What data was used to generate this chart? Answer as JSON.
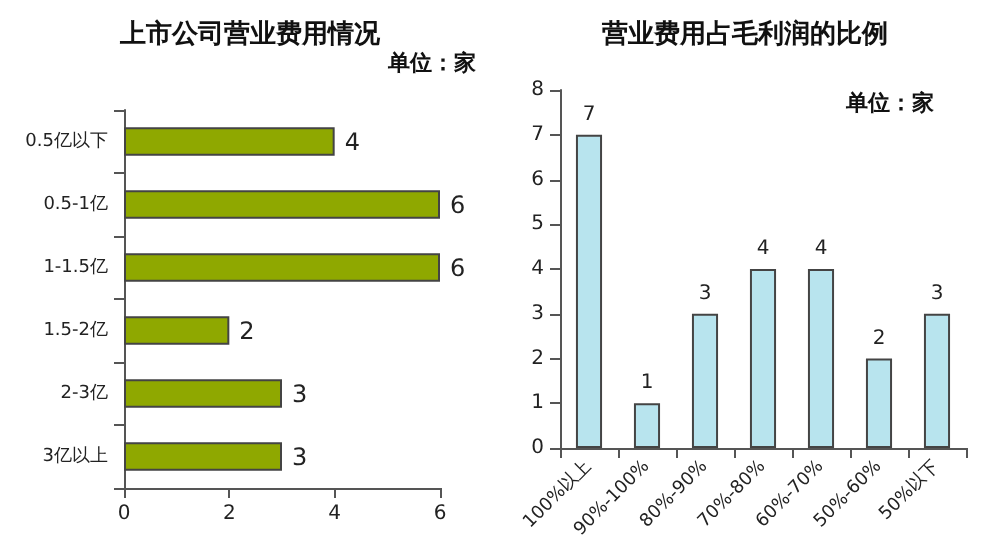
{
  "chart_data": [
    {
      "type": "bar",
      "title": "上市公司营业费用情况",
      "annotations": [
        "单位：家"
      ],
      "orientation": "horizontal",
      "categories": [
        "0.5亿以下",
        "0.5-1亿",
        "1-1.5亿",
        "1.5-2亿",
        "2-3亿",
        "3亿以上"
      ],
      "values": [
        4,
        6,
        6,
        2,
        3,
        3
      ],
      "color": "#8fa800",
      "xlim": [
        0,
        6
      ],
      "xticks": [
        0,
        2,
        4,
        6
      ],
      "data_labels": true,
      "grid": false
    },
    {
      "type": "bar",
      "title": "营业费用占毛利润的比例",
      "annotations": [
        "单位：家"
      ],
      "categories": [
        "100%以上",
        "90%-100%",
        "80%-90%",
        "70%-80%",
        "60%-70%",
        "50%-60%",
        "50%以下"
      ],
      "values": [
        7,
        1,
        3,
        4,
        4,
        2,
        3
      ],
      "color": "#b8e4ee",
      "ylim": [
        0,
        8
      ],
      "yticks": [
        0,
        1,
        2,
        3,
        4,
        5,
        6,
        7,
        8
      ],
      "data_labels": true,
      "grid": false
    }
  ]
}
